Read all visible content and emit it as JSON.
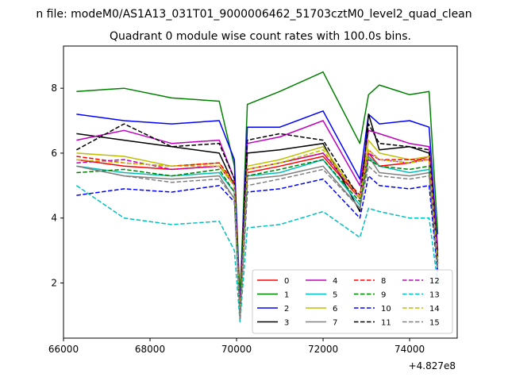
{
  "suptitle": "n file: modeM0/AS1A13_031T01_9000006462_51703cztM0_level2_quad_clean",
  "chart_data": {
    "type": "line",
    "title": "Quadrant 0 module wise count rates with 100.0s bins.",
    "xlabel": "",
    "ylabel": "",
    "x_offset_label": "+4.827e8",
    "xlim": [
      66000,
      75100
    ],
    "ylim": [
      0.3,
      9.3
    ],
    "x_ticks": [
      66000,
      68000,
      70000,
      72000,
      74000
    ],
    "x_tick_labels": [
      "66000",
      "68000",
      "70000",
      "72000",
      "74000"
    ],
    "y_ticks": [
      2,
      4,
      6,
      8
    ],
    "y_tick_labels": [
      "2",
      "4",
      "6",
      "8"
    ],
    "grid": false,
    "legend_placement": "lower-right",
    "legend_columns": 4,
    "x": [
      66300,
      67400,
      68500,
      69600,
      69950,
      70080,
      70250,
      71000,
      72000,
      72850,
      73050,
      73300,
      74000,
      74450,
      74650
    ],
    "series": [
      {
        "name": "0",
        "color": "#ff0000",
        "dash": "solid",
        "values": [
          5.8,
          5.6,
          5.5,
          5.6,
          5.0,
          1.0,
          5.4,
          5.6,
          5.9,
          4.6,
          6.0,
          5.6,
          5.7,
          5.9,
          2.6
        ]
      },
      {
        "name": "1",
        "color": "#008000",
        "dash": "solid",
        "values": [
          7.9,
          8.0,
          7.7,
          7.6,
          5.6,
          1.5,
          7.5,
          7.9,
          8.5,
          6.3,
          7.8,
          8.1,
          7.8,
          7.9,
          3.5
        ]
      },
      {
        "name": "2",
        "color": "#0000ff",
        "dash": "solid",
        "values": [
          7.2,
          7.0,
          6.9,
          7.0,
          5.8,
          1.2,
          6.8,
          6.8,
          7.3,
          5.2,
          7.2,
          6.9,
          7.0,
          6.8,
          3.0
        ]
      },
      {
        "name": "3",
        "color": "#000000",
        "dash": "solid",
        "values": [
          6.6,
          6.4,
          6.2,
          6.0,
          5.0,
          1.0,
          6.0,
          6.1,
          6.3,
          4.2,
          7.2,
          6.1,
          6.2,
          6.0,
          2.8
        ]
      },
      {
        "name": "4",
        "color": "#bf00bf",
        "dash": "solid",
        "values": [
          6.4,
          6.7,
          6.3,
          6.4,
          5.2,
          1.2,
          6.3,
          6.5,
          7.0,
          5.0,
          6.7,
          6.6,
          6.3,
          6.2,
          2.9
        ]
      },
      {
        "name": "5",
        "color": "#00bfbf",
        "dash": "solid",
        "values": [
          5.6,
          5.4,
          5.3,
          5.4,
          4.8,
          1.0,
          5.3,
          5.4,
          5.8,
          4.4,
          5.9,
          5.6,
          5.4,
          5.5,
          2.5
        ]
      },
      {
        "name": "6",
        "color": "#bfbf00",
        "dash": "solid",
        "values": [
          6.0,
          5.9,
          5.6,
          5.7,
          5.0,
          1.0,
          5.6,
          5.8,
          6.2,
          4.6,
          6.4,
          6.0,
          5.8,
          5.9,
          2.6
        ]
      },
      {
        "name": "7",
        "color": "#808080",
        "dash": "solid",
        "values": [
          5.6,
          5.3,
          5.2,
          5.3,
          4.6,
          0.9,
          5.2,
          5.3,
          5.6,
          4.3,
          5.9,
          5.4,
          5.3,
          5.4,
          2.4
        ]
      },
      {
        "name": "8",
        "color": "#ff0000",
        "dash": "dashed",
        "values": [
          5.9,
          5.7,
          5.6,
          5.7,
          5.1,
          1.0,
          5.5,
          5.7,
          6.0,
          4.7,
          6.1,
          5.8,
          5.8,
          5.8,
          2.6
        ]
      },
      {
        "name": "9",
        "color": "#008000",
        "dash": "dashed",
        "values": [
          5.4,
          5.5,
          5.3,
          5.5,
          4.8,
          1.0,
          5.3,
          5.5,
          5.8,
          4.5,
          5.8,
          5.6,
          5.5,
          5.6,
          2.5
        ]
      },
      {
        "name": "10",
        "color": "#0000ff",
        "dash": "dashed",
        "values": [
          4.7,
          4.9,
          4.8,
          5.0,
          4.5,
          1.0,
          4.8,
          4.9,
          5.2,
          4.0,
          5.3,
          5.0,
          4.9,
          5.0,
          2.3
        ]
      },
      {
        "name": "11",
        "color": "#000000",
        "dash": "dashed",
        "values": [
          6.1,
          6.9,
          6.2,
          6.3,
          5.2,
          1.1,
          6.4,
          6.6,
          6.4,
          4.6,
          6.9,
          6.3,
          6.2,
          6.1,
          2.7
        ]
      },
      {
        "name": "12",
        "color": "#bf00bf",
        "dash": "dashed",
        "values": [
          5.7,
          5.8,
          5.5,
          5.6,
          5.0,
          1.0,
          5.5,
          5.7,
          6.0,
          4.6,
          6.0,
          5.8,
          5.7,
          5.8,
          2.6
        ]
      },
      {
        "name": "13",
        "color": "#00bfbf",
        "dash": "dashed",
        "values": [
          5.0,
          4.0,
          3.8,
          3.9,
          3.0,
          0.8,
          3.7,
          3.8,
          4.2,
          3.4,
          4.3,
          4.2,
          4.0,
          4.0,
          2.0
        ]
      },
      {
        "name": "14",
        "color": "#bfbf00",
        "dash": "dashed",
        "values": [
          5.8,
          5.7,
          5.6,
          5.6,
          5.0,
          1.0,
          5.5,
          5.7,
          6.1,
          4.6,
          6.1,
          5.8,
          5.7,
          5.8,
          2.6
        ]
      },
      {
        "name": "15",
        "color": "#808080",
        "dash": "dashed",
        "values": [
          5.6,
          5.3,
          5.1,
          5.2,
          4.6,
          0.9,
          5.0,
          5.2,
          5.5,
          4.3,
          5.6,
          5.3,
          5.2,
          5.3,
          2.4
        ]
      }
    ]
  }
}
